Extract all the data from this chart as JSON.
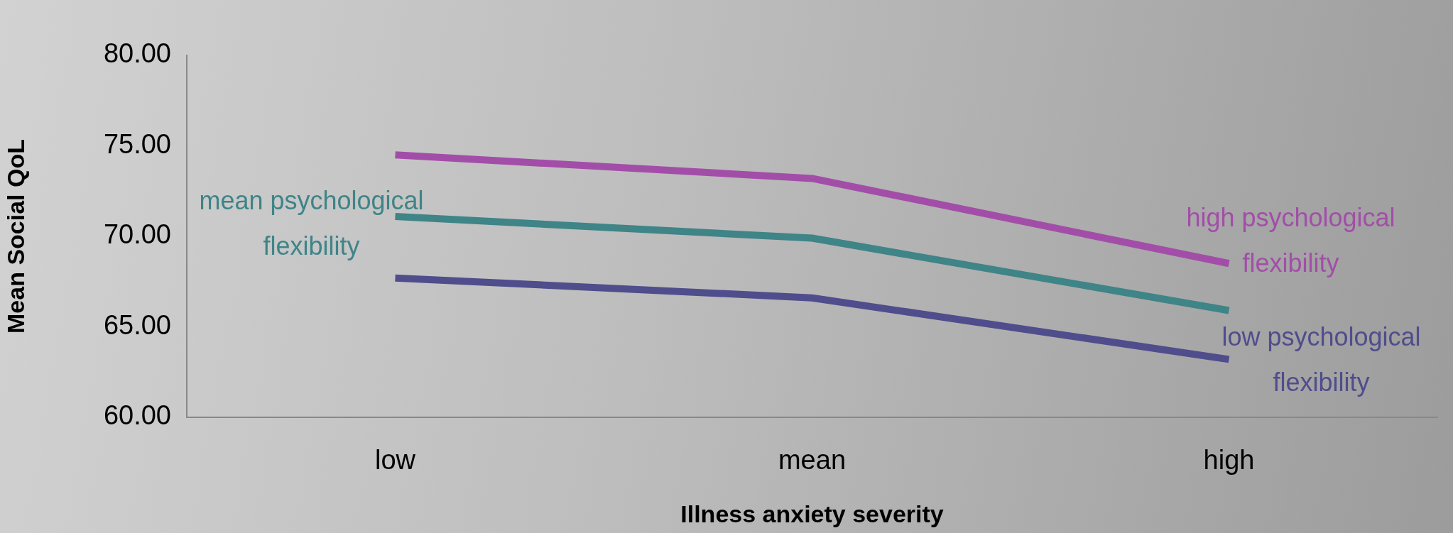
{
  "chart_data": {
    "type": "line",
    "xlabel": "Illness anxiety severity",
    "ylabel": "Mean Social QoL",
    "categories": [
      "low",
      "mean",
      "high"
    ],
    "series": [
      {
        "name": "high psychological flexibility",
        "color": "#a24ea8",
        "values": [
          74.5,
          73.2,
          68.5
        ]
      },
      {
        "name": "mean psychological flexibility",
        "color": "#3f8487",
        "values": [
          71.1,
          69.9,
          65.9
        ]
      },
      {
        "name": "low psychological flexibility",
        "color": "#4f4d8c",
        "values": [
          67.7,
          66.6,
          63.2
        ]
      }
    ],
    "ylim": [
      60,
      80
    ],
    "yticks": [
      {
        "value": 60,
        "label": "60.00"
      },
      {
        "value": 65,
        "label": "65.00"
      },
      {
        "value": 70,
        "label": "70.00"
      },
      {
        "value": 75,
        "label": "75.00"
      },
      {
        "value": 80,
        "label": "80.00"
      }
    ],
    "grid": false,
    "legend": false,
    "marker": "none",
    "line_style": "solid"
  }
}
